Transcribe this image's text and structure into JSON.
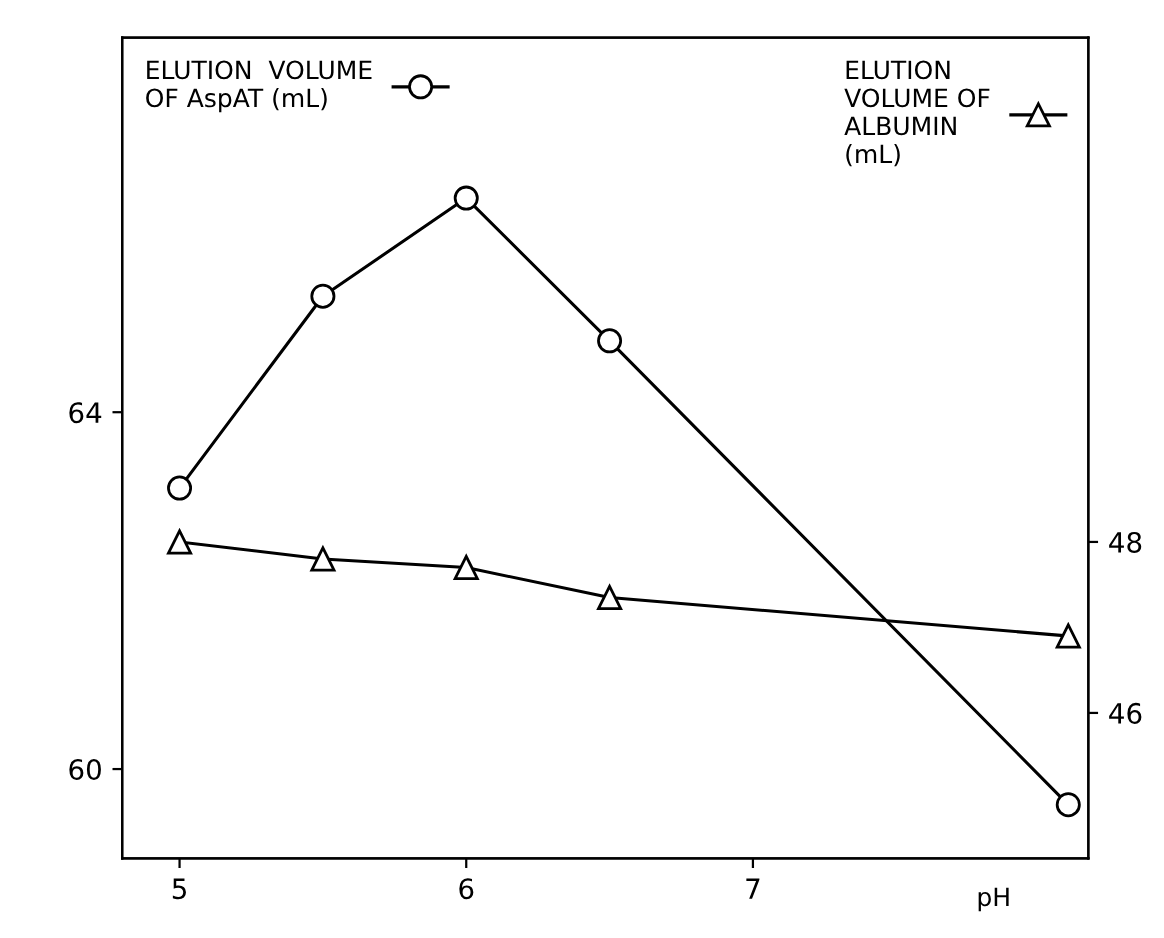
{
  "chart_data": {
    "type": "line",
    "xlabel": "pH",
    "x": [
      5,
      5.5,
      6,
      6.5,
      8.1
    ],
    "series": [
      {
        "name": "ELUTION  VOLUME\nOF AspAT (mL)",
        "color": "#000000",
        "values": [
          63.15,
          65.3,
          66.4,
          64.8,
          59.6
        ],
        "marker": "circle"
      },
      {
        "name": "ELUTION\nVOLUME OF\nALBUMIN\n(mL)",
        "color": "#000000",
        "values": [
          48.0,
          47.8,
          47.7,
          47.35,
          46.9
        ],
        "marker": "triangle",
        "axis": "y2"
      }
    ],
    "xlim": [
      4.8,
      8.17
    ],
    "xticks": [
      5,
      6,
      7
    ],
    "ylim": [
      59,
      68.2
    ],
    "yticks": [
      60,
      64
    ],
    "y2lim": [
      44.3,
      53.9
    ],
    "y2ticks": [
      46,
      48
    ],
    "grid": false,
    "legend": "top",
    "line_style": "solid"
  }
}
